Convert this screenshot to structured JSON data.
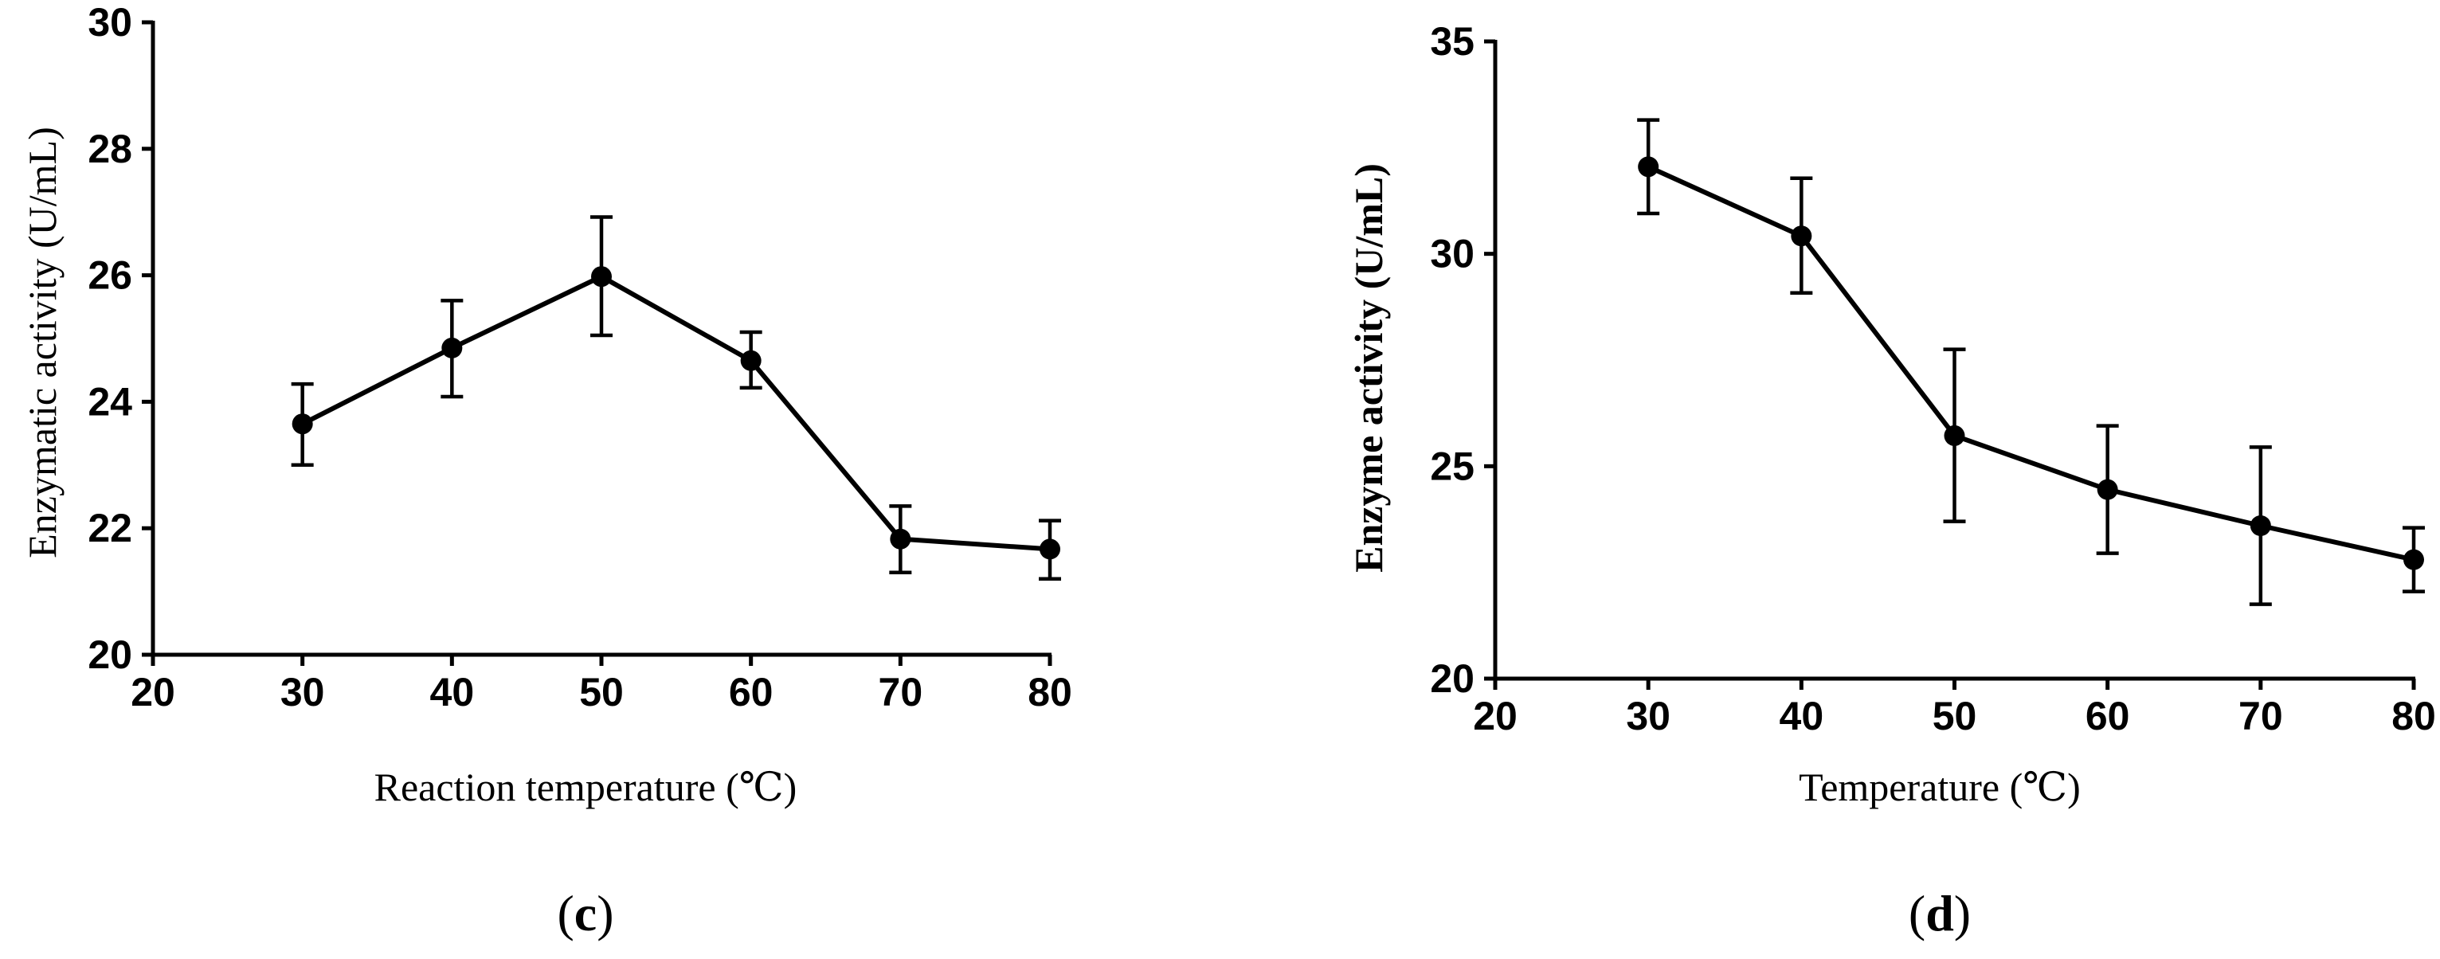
{
  "chart_data": [
    {
      "type": "line",
      "title": "",
      "xlabel": "Reaction temperature (℃)",
      "ylabel": "Enzymatic activity (U/mL)",
      "panel_label": "c",
      "xlim": [
        20,
        80
      ],
      "ylim": [
        20,
        30
      ],
      "xticks": [
        "20",
        "30",
        "40",
        "50",
        "60",
        "70",
        "80"
      ],
      "yticks": [
        "20",
        "22",
        "24",
        "26",
        "28",
        "30"
      ],
      "grid": false,
      "series": [
        {
          "x": [
            30,
            40,
            50,
            60,
            70,
            80
          ],
          "y": [
            23.65,
            24.85,
            25.98,
            24.65,
            21.83,
            21.67
          ],
          "err_low": [
            23.0,
            24.08,
            25.05,
            24.22,
            21.3,
            21.2
          ],
          "err_high": [
            24.28,
            25.6,
            26.92,
            25.1,
            22.35,
            22.12
          ]
        }
      ]
    },
    {
      "type": "line",
      "title": "",
      "xlabel": "Temperature (℃)",
      "ylabel": "Enzyme activity (U/mL)",
      "panel_label": "d",
      "xlim": [
        20,
        80
      ],
      "ylim": [
        20,
        35
      ],
      "xticks": [
        "20",
        "30",
        "40",
        "50",
        "60",
        "70",
        "80"
      ],
      "yticks": [
        "20",
        "25",
        "30",
        "35"
      ],
      "grid": false,
      "series": [
        {
          "x": [
            30,
            40,
            50,
            60,
            70,
            80
          ],
          "y": [
            32.05,
            30.42,
            25.72,
            24.45,
            23.6,
            22.8
          ],
          "err_low": [
            30.95,
            29.08,
            23.7,
            22.95,
            21.75,
            22.05
          ],
          "err_high": [
            33.15,
            31.78,
            27.75,
            25.95,
            25.45,
            23.55
          ]
        }
      ]
    }
  ]
}
